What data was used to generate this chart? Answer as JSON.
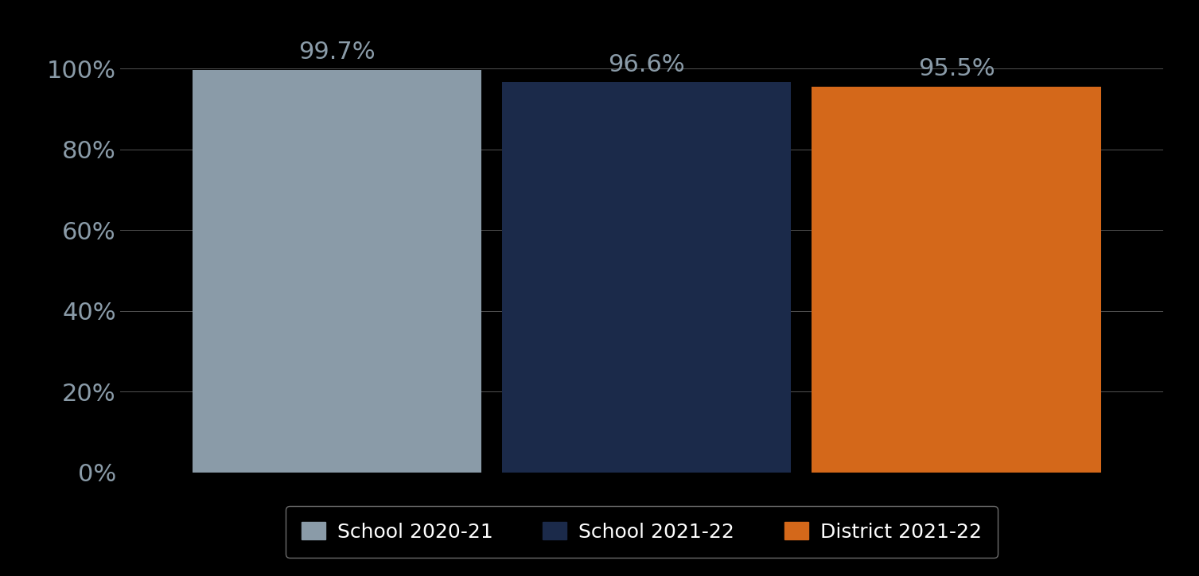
{
  "categories": [
    "School 2020-21",
    "School 2021-22",
    "District 2021-22"
  ],
  "values": [
    99.7,
    96.6,
    95.5
  ],
  "bar_colors": [
    "#8A9BA8",
    "#1B2A4A",
    "#D4681A"
  ],
  "value_labels": [
    "99.7%",
    "96.6%",
    "95.5%"
  ],
  "ylim": [
    0,
    107
  ],
  "yticks": [
    0,
    20,
    40,
    60,
    80,
    100
  ],
  "ytick_labels": [
    "0%",
    "20%",
    "40%",
    "60%",
    "80%",
    "100%"
  ],
  "background_color": "#000000",
  "text_color": "#8A9BA8",
  "grid_color": "#888888",
  "label_fontsize": 22,
  "tick_fontsize": 22,
  "legend_fontsize": 18,
  "bar_width": 0.28,
  "bar_positions": [
    0.33,
    0.63,
    0.93
  ],
  "xlim": [
    0.12,
    1.13
  ]
}
